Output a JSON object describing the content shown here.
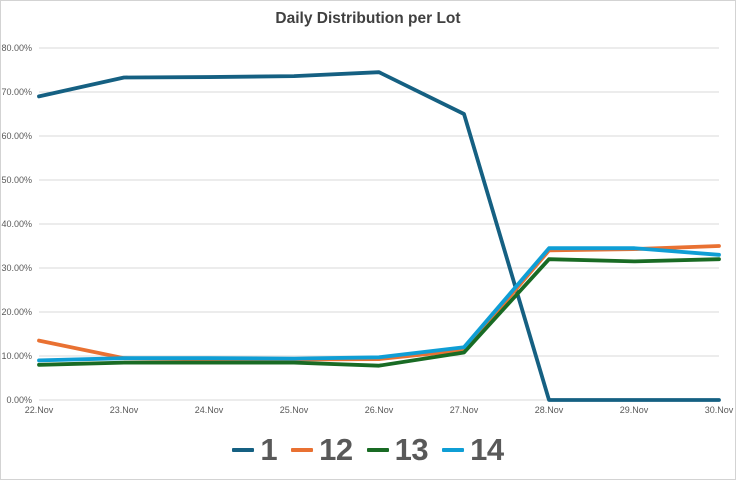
{
  "window": {
    "background": "#FFFFFF",
    "border_color": "#D3D3D3"
  },
  "chart_data": {
    "type": "line",
    "title": "Daily Distribution per Lot",
    "title_color": "#404040",
    "categories": [
      "22.Nov",
      "23.Nov",
      "24.Nov",
      "25.Nov",
      "26.Nov",
      "27.Nov",
      "28.Nov",
      "29.Nov",
      "30.Nov"
    ],
    "series": [
      {
        "name": "1",
        "color": "#156082",
        "values": [
          69,
          73.3,
          73.4,
          73.6,
          74.5,
          65,
          0,
          0,
          0
        ]
      },
      {
        "name": "12",
        "color": "#E97132",
        "values": [
          13.5,
          9.5,
          9.2,
          9.2,
          9.3,
          11.3,
          34,
          34.3,
          35
        ]
      },
      {
        "name": "13",
        "color": "#196B24",
        "values": [
          8,
          8.5,
          8.5,
          8.5,
          7.8,
          10.8,
          32,
          31.5,
          32
        ]
      },
      {
        "name": "14",
        "color": "#0F9ED5",
        "values": [
          9,
          9.5,
          9.5,
          9.4,
          9.7,
          12,
          34.5,
          34.5,
          33
        ]
      }
    ],
    "ylim": [
      0,
      80
    ],
    "yticks": [
      {
        "value": 0,
        "label": "0.00%"
      },
      {
        "value": 10,
        "label": "10.00%"
      },
      {
        "value": 20,
        "label": "20.00%"
      },
      {
        "value": 30,
        "label": "30.00%"
      },
      {
        "value": 40,
        "label": "40.00%"
      },
      {
        "value": 50,
        "label": "50.00%"
      },
      {
        "value": 60,
        "label": "60.00%"
      },
      {
        "value": 70,
        "label": "70.00%"
      },
      {
        "value": 80,
        "label": "80.00%"
      }
    ],
    "grid": true,
    "grid_color": "#D9D9D9",
    "axis_label_color": "#595959",
    "legend_position": "bottom",
    "legend_text_color": "#595959"
  }
}
